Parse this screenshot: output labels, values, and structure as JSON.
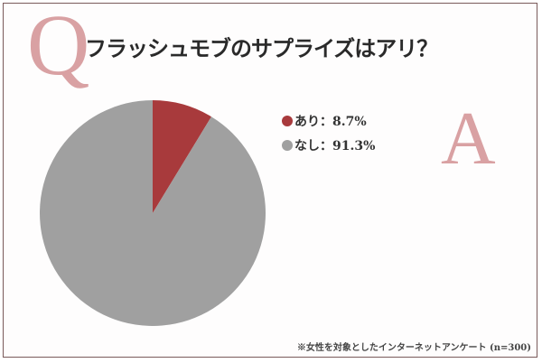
{
  "header": {
    "q_letter": "Q",
    "title": "フラッシュモブのサプライズはアリ？"
  },
  "answer": {
    "a_letter": "A"
  },
  "legend": [
    {
      "label": "あり：8.7%",
      "color": "#a83a3c"
    },
    {
      "label": "なし：91.3%",
      "color": "#a0a0a0"
    }
  ],
  "footnote": "※女性を対象としたインターネットアンケート (n=300)",
  "colors": {
    "accent_letter": "#d9a1a3",
    "border": "#7a5a5a",
    "yes": "#a83a3c",
    "no": "#a0a0a0"
  },
  "chart_data": {
    "type": "pie",
    "title": "フラッシュモブのサプライズはアリ？",
    "categories": [
      "あり",
      "なし"
    ],
    "values": [
      8.7,
      91.3
    ],
    "colors": [
      "#a83a3c",
      "#a0a0a0"
    ],
    "legend_position": "right",
    "start_angle": "12 o'clock, clockwise",
    "note": "※女性を対象としたインターネットアンケート (n=300)"
  }
}
